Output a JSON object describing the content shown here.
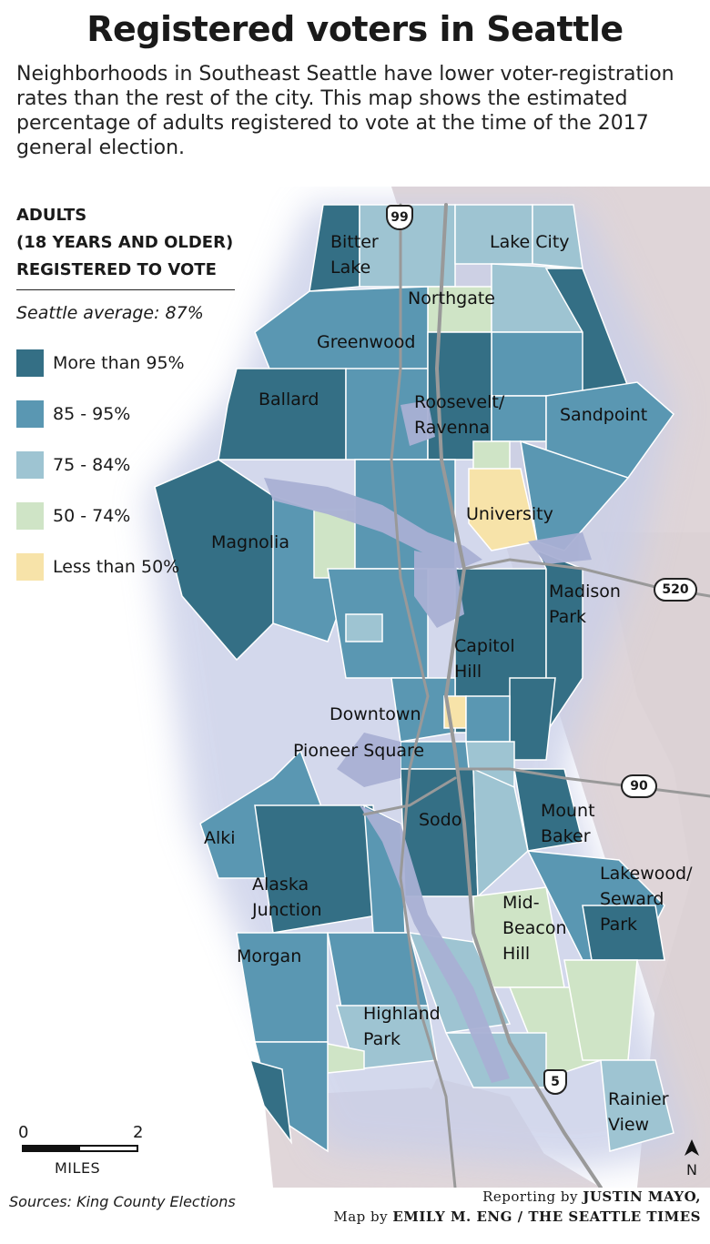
{
  "title": "Registered voters in Seattle",
  "subtitle": "Neighborhoods in Southeast Seattle have lower voter-registration rates than the rest of the city. This map shows the estimated percentage of adults registered to vote at the time of the 2017 general election.",
  "legend": {
    "heading_line1": "ADULTS",
    "heading_line2": "(18 YEARS AND OLDER)",
    "heading_line3": "REGISTERED TO VOTE",
    "average": "Seattle average: 87%",
    "items": [
      {
        "label": "More than 95%",
        "color": "#346f85"
      },
      {
        "label": "85 - 95%",
        "color": "#5a97b2"
      },
      {
        "label": "75 - 84%",
        "color": "#9ec4d2"
      },
      {
        "label": "50 - 74%",
        "color": "#cfe4c6"
      },
      {
        "label": "Less than 50%",
        "color": "#f7e3a9"
      }
    ]
  },
  "neighborhoods": {
    "bitter_lake": "Bitter\nLake",
    "lake_city": "Lake City",
    "northgate": "Northgate",
    "greenwood": "Greenwood",
    "ballard": "Ballard",
    "roosevelt": "Roosevelt/\nRavenna",
    "sandpoint": "Sandpoint",
    "university": "University",
    "magnolia": "Magnolia",
    "madison_park": "Madison\nPark",
    "capitol_hill": "Capitol\nHill",
    "downtown": "Downtown",
    "pioneer_square": "Pioneer Square",
    "mount_baker": "Mount\nBaker",
    "sodo": "Sodo",
    "alki": "Alki",
    "alaska_junction": "Alaska\nJunction",
    "lakewood": "Lakewood/\nSeward\nPark",
    "beacon_hill": "Mid-\nBeacon\nHill",
    "morgan": "Morgan",
    "highland_park": "Highland\nPark",
    "rainier_view": "Rainier\nView"
  },
  "highways": {
    "hwy99": "99",
    "hwy520": "520",
    "hwy90": "90",
    "hwy5": "5"
  },
  "scale": {
    "zero": "0",
    "two": "2",
    "unit": "MILES"
  },
  "north": "N",
  "sources": "Sources: King County Elections",
  "credit_line1_prefix": "Reporting by ",
  "credit_line1_name": "JUSTIN MAYO,",
  "credit_line2_prefix": "Map by ",
  "credit_line2_name": "EMILY M. ENG / THE SEATTLE TIMES"
}
